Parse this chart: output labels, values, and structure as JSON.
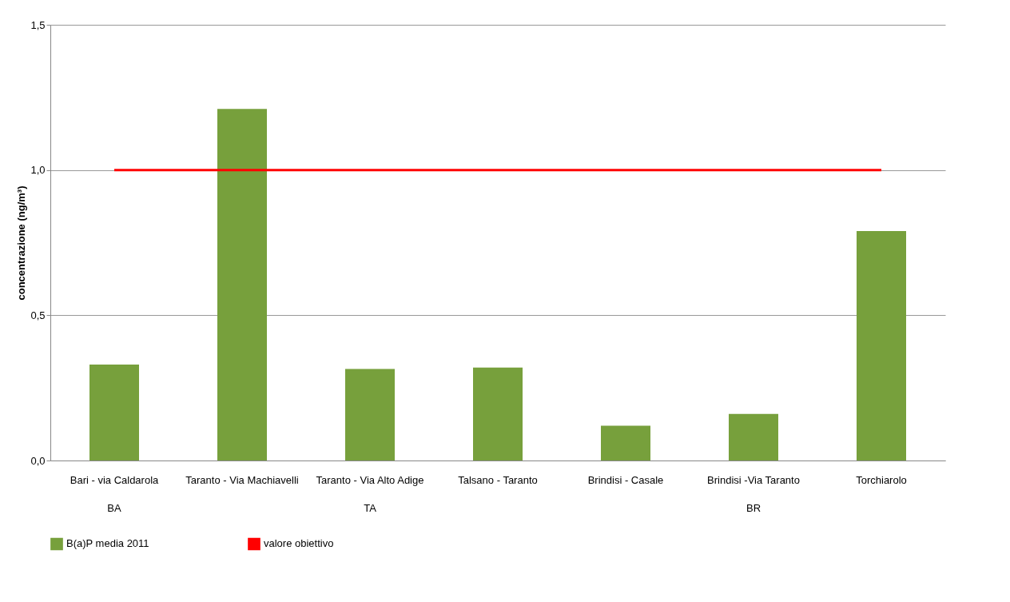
{
  "chart_data": {
    "type": "bar",
    "ylabel": "concentrazione (ng/m³)",
    "categories": [
      "Bari - via Caldarola",
      "Taranto - Via Machiavelli",
      "Taranto - Via Alto Adige",
      "Talsano - Taranto",
      "Brindisi - Casale",
      "Brindisi -Via Taranto",
      "Torchiarolo"
    ],
    "series": [
      {
        "name": "B(a)P media 2011",
        "color": "#77a03c",
        "values": [
          0.33,
          1.21,
          0.315,
          0.32,
          0.12,
          0.16,
          0.79
        ]
      },
      {
        "name": "valore obiettivo",
        "type": "line",
        "color": "#ff0000",
        "values": [
          1,
          1,
          1,
          1,
          1,
          1,
          1
        ]
      }
    ],
    "ylim": [
      0,
      1.5
    ],
    "yticks": [
      {
        "value": 0,
        "label": "0,0"
      },
      {
        "value": 0.5,
        "label": "0,5"
      },
      {
        "value": 1,
        "label": "1,0"
      },
      {
        "value": 1.5,
        "label": "1,5"
      }
    ],
    "grid": "y",
    "legend": "bottom",
    "annotations": [
      "BA",
      "TA",
      "BR"
    ]
  }
}
